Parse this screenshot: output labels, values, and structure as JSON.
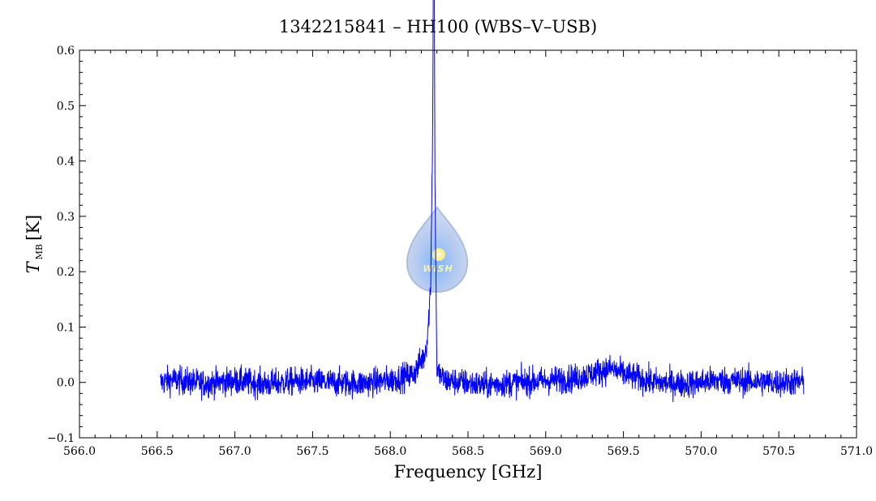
{
  "chart_data": {
    "type": "line",
    "title": "1342215841 – HH100 (WBS–V–USB)",
    "xlabel": "Frequency [GHz]",
    "ylabel": {
      "main": "T",
      "subscript": "MB",
      "unit": "[K]"
    },
    "xlim": [
      566.0,
      571.0
    ],
    "ylim": [
      -0.1,
      0.6
    ],
    "x_ticks": [
      "566.0",
      "566.5",
      "567.0",
      "567.5",
      "568.0",
      "568.5",
      "569.0",
      "569.5",
      "570.0",
      "570.5",
      "571.0"
    ],
    "y_ticks": [
      "−0.1",
      "0.0",
      "0.1",
      "0.2",
      "0.3",
      "0.4",
      "0.5",
      "0.6"
    ],
    "grid": false,
    "series": [
      {
        "color": "#0000ff",
        "x_range": [
          566.52,
          570.66
        ],
        "noise_rms_K": 0.018,
        "features": [
          {
            "x": 568.28,
            "peak_K": 0.54,
            "kind": "narrow emission line"
          },
          {
            "x": 568.26,
            "peak_K": 0.1,
            "kind": "broad wing"
          },
          {
            "x": 569.42,
            "peak_K": 0.02,
            "kind": "weak broad bump"
          }
        ],
        "points": [
          [
            566.52,
            0.0
          ],
          [
            566.6,
            0.005
          ],
          [
            566.8,
            -0.002
          ],
          [
            567.0,
            0.003
          ],
          [
            567.2,
            -0.003
          ],
          [
            567.4,
            0.002
          ],
          [
            567.6,
            0.0
          ],
          [
            567.8,
            -0.002
          ],
          [
            568.0,
            0.004
          ],
          [
            568.15,
            0.015
          ],
          [
            568.22,
            0.05
          ],
          [
            568.26,
            0.1
          ],
          [
            568.28,
            0.54
          ],
          [
            568.3,
            0.02
          ],
          [
            568.35,
            0.004
          ],
          [
            568.6,
            -0.005
          ],
          [
            568.8,
            0.0
          ],
          [
            569.0,
            0.003
          ],
          [
            569.2,
            0.008
          ],
          [
            569.35,
            0.02
          ],
          [
            569.42,
            0.025
          ],
          [
            569.5,
            0.015
          ],
          [
            569.7,
            0.0
          ],
          [
            569.9,
            -0.003
          ],
          [
            570.1,
            0.004
          ],
          [
            570.3,
            0.002
          ],
          [
            570.5,
            0.0
          ],
          [
            570.66,
            0.001
          ]
        ]
      }
    ]
  },
  "watermark": {
    "text": "WISH",
    "icon": "water-drop-logo"
  }
}
